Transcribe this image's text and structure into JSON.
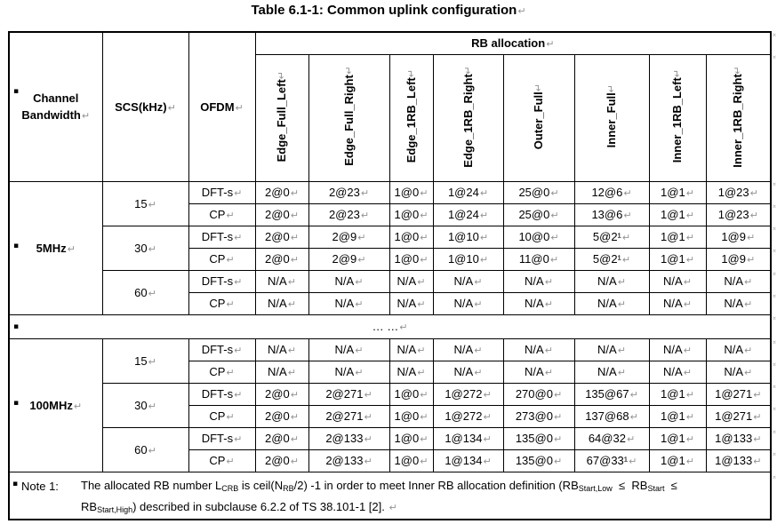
{
  "title": "Table 6.1-1: Common uplink configuration",
  "marks": {
    "paragraph": "↵",
    "bullet": "▪",
    "row_end": "¤"
  },
  "header": {
    "channel_bandwidth_line1": "Channel",
    "channel_bandwidth_line2": "Bandwidth",
    "scs": "SCS(kHz)",
    "ofdm": "OFDM",
    "rb_allocation": "RB allocation",
    "rb_columns": [
      "Edge_Full_Left",
      "Edge_Full_Right",
      "Edge_1RB_Left",
      "Edge_1RB_Right",
      "Outer_Full",
      "Inner_Full",
      "Inner_1RB_Left",
      "Inner_1RB_Right"
    ]
  },
  "ofdm_labels": {
    "dfts": "DFT-s",
    "cp": "CP"
  },
  "sections": [
    {
      "bandwidth": "5MHz",
      "groups": [
        {
          "scs": "15",
          "dfts": [
            "2@0",
            "2@23",
            "1@0",
            "1@24",
            "25@0",
            "12@6",
            "1@1",
            "1@23"
          ],
          "cp": [
            "2@0",
            "2@23",
            "1@0",
            "1@24",
            "25@0",
            "13@6",
            "1@1",
            "1@23"
          ]
        },
        {
          "scs": "30",
          "dfts": [
            "2@0",
            "2@9",
            "1@0",
            "1@10",
            "10@0",
            "5@2¹",
            "1@1",
            "1@9"
          ],
          "cp": [
            "2@0",
            "2@9",
            "1@0",
            "1@10",
            "11@0",
            "5@2¹",
            "1@1",
            "1@9"
          ]
        },
        {
          "scs": "60",
          "dfts": [
            "N/A",
            "N/A",
            "N/A",
            "N/A",
            "N/A",
            "N/A",
            "N/A",
            "N/A"
          ],
          "cp": [
            "N/A",
            "N/A",
            "N/A",
            "N/A",
            "N/A",
            "N/A",
            "N/A",
            "N/A"
          ]
        }
      ]
    },
    {
      "bandwidth": "100MHz",
      "groups": [
        {
          "scs": "15",
          "dfts": [
            "N/A",
            "N/A",
            "N/A",
            "N/A",
            "N/A",
            "N/A",
            "N/A",
            "N/A"
          ],
          "cp": [
            "N/A",
            "N/A",
            "N/A",
            "N/A",
            "N/A",
            "N/A",
            "N/A",
            "N/A"
          ]
        },
        {
          "scs": "30",
          "dfts": [
            "2@0",
            "2@271",
            "1@0",
            "1@272",
            "270@0",
            "135@67",
            "1@1",
            "1@271"
          ],
          "cp": [
            "2@0",
            "2@271",
            "1@0",
            "1@272",
            "273@0",
            "137@68",
            "1@1",
            "1@271"
          ]
        },
        {
          "scs": "60",
          "dfts": [
            "2@0",
            "2@133",
            "1@0",
            "1@134",
            "135@0",
            "64@32",
            "1@1",
            "1@133"
          ],
          "cp": [
            "2@0",
            "2@133",
            "1@0",
            "1@134",
            "135@0",
            "67@33¹",
            "1@1",
            "1@133"
          ]
        }
      ]
    }
  ],
  "ellipsis": "… …",
  "note": {
    "label": "Note 1:",
    "line1": [
      {
        "t": "The allocated RB number L"
      },
      {
        "s": "CRB"
      },
      {
        "t": " is ceil(N"
      },
      {
        "s": "RB"
      },
      {
        "t": "/2) -1 in order to meet Inner RB allocation definition (RB"
      },
      {
        "s": "Start,Low"
      },
      {
        "t": "  ≤  RB"
      },
      {
        "s": "Start"
      },
      {
        "t": "  ≤"
      }
    ],
    "line2": [
      {
        "t": "RB"
      },
      {
        "s": "Start,High"
      },
      {
        "t": ") described in subclause 6.2.2 of TS 38.101-1 [2]. "
      }
    ]
  }
}
